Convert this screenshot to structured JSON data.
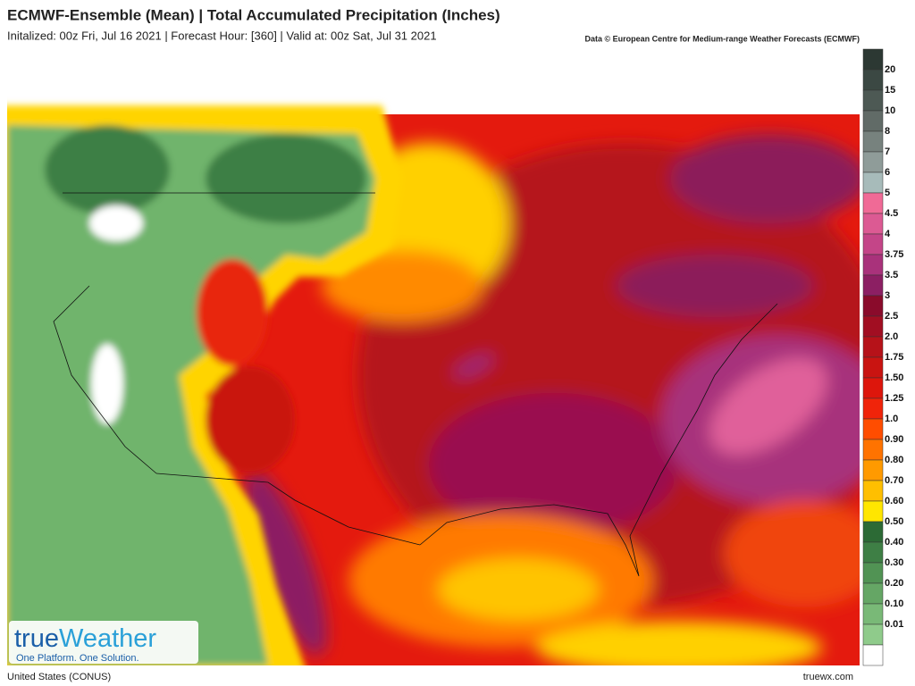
{
  "header": {
    "title": "ECMWF-Ensemble (Mean) | Total Accumulated Precipitation (Inches)",
    "subtitle": "Initalized: 00z Fri, Jul 16 2021 | Forecast Hour: [360] | Valid at: 00z Sat, Jul 31 2021",
    "credit": "Data © European Centre for Medium-range Weather Forecasts (ECMWF)"
  },
  "legend": {
    "labels": [
      "20",
      "15",
      "10",
      "8",
      "7",
      "6",
      "5",
      "4.5",
      "4",
      "3.75",
      "3.5",
      "3",
      "2.5",
      "2.0",
      "1.75",
      "1.50",
      "1.25",
      "1.0",
      "0.90",
      "0.80",
      "0.70",
      "0.60",
      "0.50",
      "0.40",
      "0.30",
      "0.20",
      "0.10",
      "0.01"
    ],
    "colors": [
      "#2c3833",
      "#3b4843",
      "#4d5954",
      "#616b67",
      "#77827e",
      "#8f9c99",
      "#a7bbba",
      "#f06a96",
      "#dc5a93",
      "#c44588",
      "#a9327b",
      "#8c1f63",
      "#8a0b2b",
      "#a10e22",
      "#b61219",
      "#c91411",
      "#dd160c",
      "#f0240a",
      "#ff4d00",
      "#ff7300",
      "#ff9a00",
      "#ffbf00",
      "#ffe600",
      "#2c6a35",
      "#3e7f45",
      "#519354",
      "#65a665",
      "#79b977",
      "#8fcb8b",
      "#ffffff"
    ]
  },
  "logo": {
    "part1": "true",
    "part2": "Weather",
    "tagline": "One Platform. One Solution."
  },
  "footer": {
    "region": "United States (CONUS)",
    "site": "truewx.com"
  }
}
